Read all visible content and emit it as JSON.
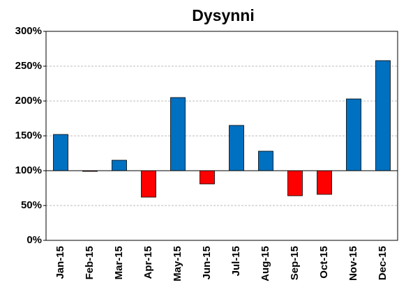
{
  "chart_data": {
    "type": "bar",
    "title": "Dysynni",
    "categories": [
      "Jan-15",
      "Feb-15",
      "Mar-15",
      "Apr-15",
      "May-15",
      "Jun-15",
      "Jul-15",
      "Aug-15",
      "Sep-15",
      "Oct-15",
      "Nov-15",
      "Dec-15"
    ],
    "values": [
      152,
      99,
      115,
      62,
      205,
      81,
      165,
      128,
      64,
      66,
      203,
      258
    ],
    "baseline": 100,
    "color": "#0070c0",
    "below_color": "#ff0000",
    "ylim": [
      0,
      300
    ],
    "yticks": [
      {
        "value": 0,
        "label": "0%"
      },
      {
        "value": 50,
        "label": "50%"
      },
      {
        "value": 100,
        "label": "100%"
      },
      {
        "value": 150,
        "label": "150%"
      },
      {
        "value": 200,
        "label": "200%"
      },
      {
        "value": 250,
        "label": "250%"
      },
      {
        "value": 300,
        "label": "300%"
      }
    ],
    "grid": true
  }
}
